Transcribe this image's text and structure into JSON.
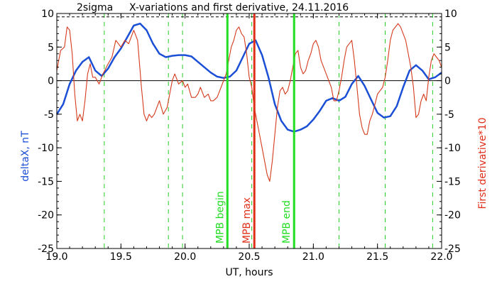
{
  "chart_data": {
    "type": "line",
    "title": "X-variations and first derivative, 24.11.2016",
    "corner_label": "2sigma",
    "xlabel": "UT, hours",
    "ylabel_left": "deltaX, nT",
    "ylabel_right": "First derivative*10",
    "xlim": [
      19.0,
      22.0
    ],
    "ylim": [
      -25.0,
      10.0
    ],
    "x_ticks": [
      "19.0",
      "19.5",
      "20.0",
      "20.5",
      "21.0",
      "21.5",
      "22.0"
    ],
    "y_ticks_left": [
      "10",
      "5",
      "0",
      "-5",
      "-10",
      "-15",
      "-20",
      "-25"
    ],
    "y_ticks_right": [
      "10",
      "5",
      "0",
      "-5",
      "-10",
      "-15",
      "-20",
      "-25"
    ],
    "y_tick_values": [
      10,
      5,
      0,
      -5,
      -10,
      -15,
      -20,
      -25
    ],
    "x_tick_values": [
      19.0,
      19.5,
      20.0,
      20.5,
      21.0,
      21.5,
      22.0
    ],
    "colors": {
      "deltaX": "#1a4fd6",
      "derivative": "#d43a1c",
      "mpb_lines": "#22dd22",
      "mpb_max": "#e0301a",
      "dashed": "#22cc22"
    },
    "reference_lines": [
      {
        "kind": "horizontal-dashed",
        "y": 9.5
      },
      {
        "kind": "horizontal-solid",
        "y": 0
      }
    ],
    "dashed_vertical_x": [
      19.37,
      19.87,
      19.98,
      20.52,
      21.2,
      21.56,
      21.93
    ],
    "markers": [
      {
        "label": "MPB begin",
        "x": 20.33,
        "kind": "green"
      },
      {
        "label": "MPB max",
        "x": 20.54,
        "kind": "red"
      },
      {
        "label": "MPB end",
        "x": 20.85,
        "kind": "green"
      }
    ],
    "series": [
      {
        "name": "deltaX, nT",
        "axis": "left",
        "x": [
          19.0,
          19.05,
          19.1,
          19.15,
          19.2,
          19.25,
          19.3,
          19.35,
          19.4,
          19.45,
          19.5,
          19.55,
          19.6,
          19.65,
          19.7,
          19.75,
          19.8,
          19.85,
          19.9,
          19.95,
          20.0,
          20.05,
          20.1,
          20.15,
          20.2,
          20.25,
          20.3,
          20.35,
          20.4,
          20.45,
          20.5,
          20.55,
          20.6,
          20.65,
          20.7,
          20.75,
          20.8,
          20.85,
          20.9,
          20.95,
          21.0,
          21.05,
          21.1,
          21.15,
          21.2,
          21.25,
          21.3,
          21.35,
          21.4,
          21.45,
          21.5,
          21.55,
          21.6,
          21.65,
          21.7,
          21.75,
          21.8,
          21.85,
          21.9,
          21.95,
          22.0
        ],
        "y": [
          -5.0,
          -3.5,
          -0.5,
          1.5,
          2.8,
          3.5,
          1.5,
          0.7,
          1.8,
          3.5,
          4.8,
          6.5,
          8.2,
          8.5,
          7.5,
          5.5,
          4.0,
          3.5,
          3.7,
          3.8,
          3.8,
          3.6,
          2.8,
          2.0,
          1.2,
          0.6,
          0.4,
          0.6,
          1.5,
          3.5,
          5.5,
          6.0,
          3.8,
          0.5,
          -3.5,
          -6.0,
          -7.3,
          -7.6,
          -7.3,
          -6.8,
          -5.8,
          -4.5,
          -3.0,
          -2.6,
          -3.0,
          -2.4,
          -0.5,
          0.7,
          -0.8,
          -2.8,
          -4.8,
          -5.5,
          -5.3,
          -3.8,
          -1.0,
          1.5,
          2.3,
          1.5,
          0.2,
          0.5,
          1.2
        ]
      },
      {
        "name": "First derivative*10",
        "axis": "right",
        "x": [
          19.0,
          19.03,
          19.06,
          19.08,
          19.1,
          19.12,
          19.14,
          19.16,
          19.18,
          19.2,
          19.22,
          19.24,
          19.26,
          19.28,
          19.3,
          19.33,
          19.36,
          19.4,
          19.43,
          19.46,
          19.5,
          19.53,
          19.56,
          19.6,
          19.63,
          19.66,
          19.68,
          19.7,
          19.72,
          19.74,
          19.76,
          19.78,
          19.8,
          19.83,
          19.86,
          19.88,
          19.9,
          19.92,
          19.95,
          19.98,
          20.0,
          20.02,
          20.05,
          20.08,
          20.1,
          20.12,
          20.15,
          20.18,
          20.2,
          20.22,
          20.25,
          20.28,
          20.3,
          20.32,
          20.34,
          20.36,
          20.38,
          20.4,
          20.42,
          20.44,
          20.46,
          20.48,
          20.5,
          20.52,
          20.54,
          20.56,
          20.58,
          20.6,
          20.62,
          20.64,
          20.66,
          20.68,
          20.7,
          20.72,
          20.74,
          20.76,
          20.78,
          20.8,
          20.82,
          20.84,
          20.86,
          20.88,
          20.9,
          20.92,
          20.94,
          20.96,
          20.98,
          21.0,
          21.02,
          21.04,
          21.06,
          21.08,
          21.1,
          21.12,
          21.14,
          21.16,
          21.18,
          21.2,
          21.22,
          21.24,
          21.26,
          21.28,
          21.3,
          21.32,
          21.34,
          21.36,
          21.38,
          21.4,
          21.42,
          21.44,
          21.46,
          21.48,
          21.5,
          21.52,
          21.54,
          21.56,
          21.58,
          21.6,
          21.62,
          21.64,
          21.66,
          21.68,
          21.7,
          21.72,
          21.74,
          21.76,
          21.78,
          21.8,
          21.82,
          21.84,
          21.86,
          21.88,
          21.9,
          21.92,
          21.94,
          21.96,
          21.98,
          22.0
        ],
        "y": [
          1.5,
          4.5,
          5.0,
          8.0,
          7.5,
          4.0,
          -2.0,
          -6.0,
          -5.0,
          -6.0,
          -3.0,
          1.0,
          2.5,
          0.5,
          0.5,
          -0.5,
          1.0,
          2.5,
          3.5,
          6.0,
          5.0,
          6.0,
          5.5,
          7.5,
          6.0,
          -1.0,
          -5.0,
          -6.0,
          -5.0,
          -5.5,
          -5.0,
          -4.0,
          -3.0,
          -5.0,
          -4.0,
          -2.0,
          0.0,
          1.0,
          -0.5,
          0.0,
          -1.0,
          -0.5,
          -2.5,
          -2.5,
          -2.0,
          -1.0,
          -2.5,
          -2.0,
          -3.0,
          -3.0,
          -2.5,
          -1.0,
          0.0,
          1.0,
          3.0,
          5.0,
          6.0,
          7.5,
          8.0,
          7.0,
          6.5,
          4.0,
          0.5,
          -1.0,
          -4.0,
          -6.0,
          -8.0,
          -10.0,
          -12.0,
          -14.0,
          -15.0,
          -12.0,
          -8.0,
          -4.0,
          -1.5,
          -1.0,
          -2.0,
          -1.5,
          0.0,
          2.0,
          4.0,
          4.5,
          2.0,
          1.0,
          1.5,
          3.0,
          4.0,
          5.5,
          6.0,
          5.0,
          3.0,
          2.0,
          1.0,
          0.0,
          -1.0,
          -3.0,
          -3.0,
          -1.5,
          0.5,
          3.0,
          5.0,
          5.5,
          6.0,
          3.0,
          -1.0,
          -5.0,
          -7.0,
          -8.0,
          -8.0,
          -6.0,
          -5.0,
          -3.5,
          -2.0,
          -1.5,
          -1.0,
          0.5,
          3.0,
          6.0,
          7.5,
          8.0,
          8.5,
          8.0,
          7.0,
          6.0,
          4.0,
          2.0,
          -1.0,
          -5.5,
          -5.0,
          -3.0,
          -2.0,
          -3.0,
          0.5,
          3.0,
          4.0,
          3.5,
          3.0,
          2.0
        ]
      }
    ]
  }
}
